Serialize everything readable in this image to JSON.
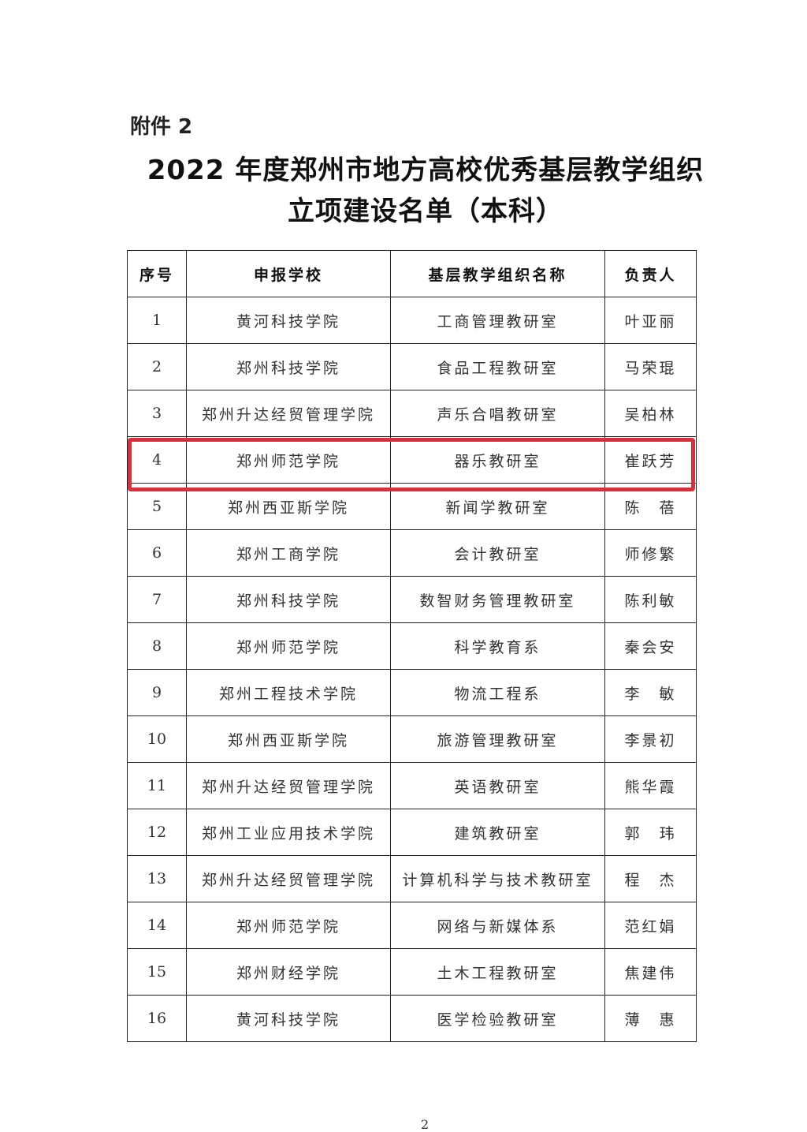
{
  "attachment_label": "附件 2",
  "title_line1": "2022 年度郑州市地方高校优秀基层教学组织",
  "title_line2": "立项建设名单（本科）",
  "table": {
    "headers": [
      "序号",
      "申报学校",
      "基层教学组织名称",
      "负责人"
    ],
    "rows": [
      [
        "1",
        "黄河科技学院",
        "工商管理教研室",
        "叶亚丽"
      ],
      [
        "2",
        "郑州科技学院",
        "食品工程教研室",
        "马荣琨"
      ],
      [
        "3",
        "郑州升达经贸管理学院",
        "声乐合唱教研室",
        "吴柏林"
      ],
      [
        "4",
        "郑州师范学院",
        "器乐教研室",
        "崔跃芳"
      ],
      [
        "5",
        "郑州西亚斯学院",
        "新闻学教研室",
        "陈　蓓"
      ],
      [
        "6",
        "郑州工商学院",
        "会计教研室",
        "师修繁"
      ],
      [
        "7",
        "郑州科技学院",
        "数智财务管理教研室",
        "陈利敏"
      ],
      [
        "8",
        "郑州师范学院",
        "科学教育系",
        "秦会安"
      ],
      [
        "9",
        "郑州工程技术学院",
        "物流工程系",
        "李　敏"
      ],
      [
        "10",
        "郑州西亚斯学院",
        "旅游管理教研室",
        "李景初"
      ],
      [
        "11",
        "郑州升达经贸管理学院",
        "英语教研室",
        "熊华霞"
      ],
      [
        "12",
        "郑州工业应用技术学院",
        "建筑教研室",
        "郭　玮"
      ],
      [
        "13",
        "郑州升达经贸管理学院",
        "计算机科学与技术教研室",
        "程　杰"
      ],
      [
        "14",
        "郑州师范学院",
        "网络与新媒体系",
        "范红娟"
      ],
      [
        "15",
        "郑州财经学院",
        "土木工程教研室",
        "焦建伟"
      ],
      [
        "16",
        "黄河科技学院",
        "医学检验教研室",
        "薄　惠"
      ]
    ],
    "highlighted_row": 4,
    "highlight_color": "#d0343f"
  },
  "page_number": "2"
}
